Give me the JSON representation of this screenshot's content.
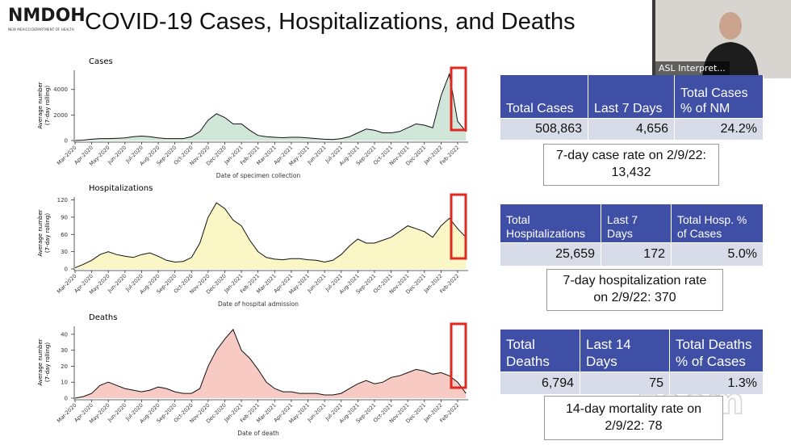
{
  "header": {
    "logo": "NMDOH",
    "logo_subtitle": "NEW MEXICO DEPARTMENT OF HEALTH",
    "title": "COVID-19 Cases, Hospitalizations, and Deaths"
  },
  "video": {
    "label": "ASL Interpret..."
  },
  "watermark": "zoom",
  "chart_data": [
    {
      "type": "area",
      "title": "Cases",
      "ylabel": [
        "Average number",
        "(7-day rolling)"
      ],
      "xlabel": "Date of specimen collection",
      "color": "#cfe6d8",
      "categories": [
        "Mar-2020",
        null,
        "Apr-2020",
        null,
        "May-2020",
        null,
        "Jun-2020",
        null,
        "Jul-2020",
        null,
        "Aug-2020",
        null,
        "Sep-2020",
        null,
        "Oct-2020",
        null,
        "Nov-2020",
        null,
        "Dec-2020",
        null,
        "Jan-2021",
        null,
        "Feb-2021",
        null,
        "Mar-2021",
        null,
        "Apr-2021",
        null,
        "May-2021",
        null,
        "Jun-2021",
        null,
        "Jul-2021",
        null,
        "Aug-2021",
        null,
        "Sep-2021",
        null,
        "Oct-2021",
        null,
        "Nov-2021",
        null,
        "Dec-2021",
        null,
        "Jan-2022",
        null,
        "Feb-2022",
        null
      ],
      "values": [
        0,
        30,
        100,
        150,
        150,
        180,
        200,
        300,
        350,
        300,
        200,
        150,
        150,
        150,
        300,
        700,
        1600,
        2100,
        1800,
        1300,
        1300,
        800,
        400,
        300,
        250,
        220,
        250,
        250,
        200,
        150,
        100,
        80,
        150,
        300,
        600,
        900,
        800,
        600,
        600,
        700,
        1000,
        1300,
        1200,
        1000,
        3500,
        5200,
        1500,
        700
      ],
      "ylim": [
        0,
        5500
      ],
      "yticks": [
        0,
        2000,
        4000
      ]
    },
    {
      "type": "area",
      "title": "Hospitalizations",
      "ylabel": [
        "Average number",
        "(7-day rolling)"
      ],
      "xlabel": "Date of hospital admission",
      "color": "#fbf6c6",
      "categories": [
        "Mar-2020",
        null,
        "Apr-2020",
        null,
        "May-2020",
        null,
        "Jun-2020",
        null,
        "Jul-2020",
        null,
        "Aug-2020",
        null,
        "Sep-2020",
        null,
        "Oct-2020",
        null,
        "Nov-2020",
        null,
        "Dec-2020",
        null,
        "Jan-2021",
        null,
        "Feb-2021",
        null,
        "Mar-2021",
        null,
        "Apr-2021",
        null,
        "May-2021",
        null,
        "Jun-2021",
        null,
        "Jul-2021",
        null,
        "Aug-2021",
        null,
        "Sep-2021",
        null,
        "Oct-2021",
        null,
        "Nov-2021",
        null,
        "Dec-2021",
        null,
        "Jan-2022",
        null,
        "Feb-2022",
        null
      ],
      "values": [
        2,
        8,
        15,
        25,
        30,
        25,
        22,
        20,
        25,
        28,
        22,
        15,
        12,
        13,
        20,
        45,
        90,
        115,
        105,
        85,
        75,
        50,
        30,
        20,
        17,
        16,
        18,
        18,
        16,
        15,
        12,
        15,
        25,
        40,
        52,
        45,
        45,
        50,
        55,
        65,
        75,
        70,
        65,
        55,
        75,
        88,
        70,
        55
      ],
      "ylim": [
        0,
        125
      ],
      "yticks": [
        0,
        30,
        60,
        90,
        120
      ]
    },
    {
      "type": "area",
      "title": "Deaths",
      "ylabel": [
        "Average number",
        "(7-day rolling)"
      ],
      "xlabel": "Date of death",
      "color": "#f8cac4",
      "categories": [
        "Mar-2020",
        null,
        "Apr-2020",
        null,
        "May-2020",
        null,
        "Jun-2020",
        null,
        "Jul-2020",
        null,
        "Aug-2020",
        null,
        "Sep-2020",
        null,
        "Oct-2020",
        null,
        "Nov-2020",
        null,
        "Dec-2020",
        null,
        "Jan-2021",
        null,
        "Feb-2021",
        null,
        "Mar-2021",
        null,
        "Apr-2021",
        null,
        "May-2021",
        null,
        "Jun-2021",
        null,
        "Jul-2021",
        null,
        "Aug-2021",
        null,
        "Sep-2021",
        null,
        "Oct-2021",
        null,
        "Nov-2021",
        null,
        "Dec-2021",
        null,
        "Jan-2022",
        null,
        "Feb-2022",
        null
      ],
      "values": [
        0,
        1,
        3,
        8,
        10,
        8,
        6,
        5,
        4,
        5,
        7,
        6,
        4,
        3,
        3,
        6,
        20,
        30,
        37,
        43,
        30,
        25,
        18,
        10,
        6,
        4,
        4,
        3,
        3,
        3,
        2,
        2,
        3,
        6,
        9,
        11,
        9,
        10,
        13,
        14,
        16,
        18,
        17,
        15,
        16,
        14,
        10,
        3
      ],
      "ylim": [
        0,
        45
      ],
      "yticks": [
        0,
        10,
        20,
        30,
        40
      ]
    }
  ],
  "tables": [
    {
      "header": [
        "Total Cases",
        "Last 7 Days",
        "Total Cases % of NM"
      ],
      "row": [
        "508,863",
        "4,656",
        "24.2%"
      ],
      "note": "7-day case rate on 2/9/22: 13,432"
    },
    {
      "header": [
        "Total Hospitalizations",
        "Last 7 Days",
        "Total Hosp. % of Cases"
      ],
      "row": [
        "25,659",
        "172",
        "5.0%"
      ],
      "note": "7-day hospitalization rate on 2/9/22: 370"
    },
    {
      "header": [
        "Total Deaths",
        "Last 14 Days",
        "Total Deaths % of Cases"
      ],
      "row": [
        "6,794",
        "75",
        "1.3%"
      ],
      "note": "14-day mortality rate on 2/9/22: 78"
    }
  ]
}
